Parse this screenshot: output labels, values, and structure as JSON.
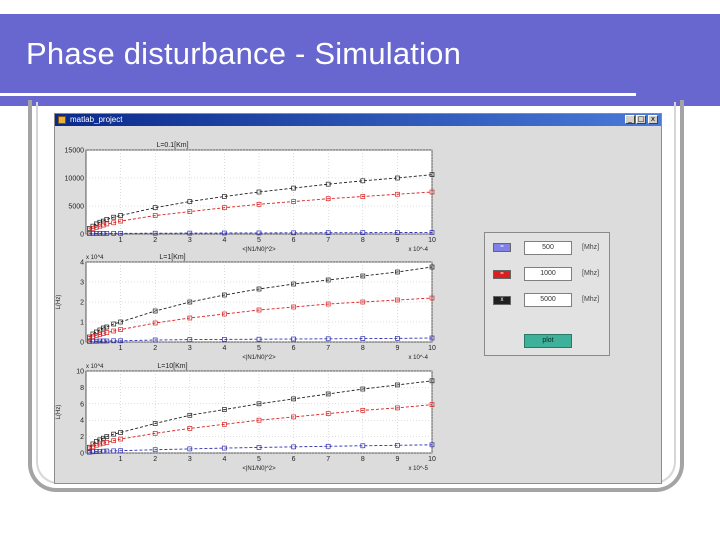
{
  "slide": {
    "title": "Phase disturbance - Simulation",
    "colors": {
      "header": "#6767cf",
      "frame": "#a4a4a4"
    }
  },
  "window": {
    "title": "matlab_project",
    "icon": "matlab-icon",
    "controls": [
      "_",
      "□",
      "x"
    ]
  },
  "panel": {
    "rows": [
      {
        "swatch_color": "#8080e6",
        "swatch_label": "=",
        "value": "500",
        "unit": "[Mhz]"
      },
      {
        "swatch_color": "#d82020",
        "swatch_label": "=",
        "value": "1000",
        "unit": "[Mhz]"
      },
      {
        "swatch_color": "#202020",
        "swatch_label": "x",
        "value": "5000",
        "unit": "[Mhz]"
      }
    ],
    "button_label": "plot"
  },
  "chart_data": [
    {
      "type": "line",
      "title": "L=0.1[Km]",
      "xlabel": "<|N1/N0|^2>",
      "ylabel": "",
      "x_exponent": "x 10^-4",
      "y_exponent": "",
      "xlim": [
        0,
        10
      ],
      "ylim": [
        0,
        15000
      ],
      "yticks": [
        "0",
        "5000",
        "10000",
        "15000"
      ],
      "xticks": [
        "1",
        "2",
        "3",
        "4",
        "5",
        "6",
        "7",
        "8",
        "9",
        "10"
      ],
      "x": [
        0.1,
        0.2,
        0.3,
        0.4,
        0.5,
        0.6,
        0.8,
        1,
        2,
        3,
        4,
        5,
        6,
        7,
        8,
        9,
        10
      ],
      "series": [
        {
          "color": "#202020",
          "values": [
            1000,
            1400,
            1800,
            2100,
            2300,
            2600,
            3000,
            3300,
            4700,
            5800,
            6700,
            7500,
            8200,
            8900,
            9500,
            10000,
            10600
          ]
        },
        {
          "color": "#d82020",
          "values": [
            700,
            1000,
            1200,
            1400,
            1600,
            1800,
            2000,
            2300,
            3300,
            4000,
            4700,
            5300,
            5800,
            6300,
            6700,
            7100,
            7500
          ]
        },
        {
          "color": "#3030b0",
          "values": [
            80,
            90,
            100,
            110,
            110,
            115,
            120,
            120,
            140,
            160,
            180,
            190,
            210,
            230,
            240,
            260,
            280
          ]
        }
      ]
    },
    {
      "type": "line",
      "title": "L=1[Km]",
      "xlabel": "<|N1/N0|^2>",
      "ylabel": "L(Hz)",
      "x_exponent": "x 10^-4",
      "y_exponent": "x 10^4",
      "xlim": [
        0,
        10
      ],
      "ylim": [
        0,
        4
      ],
      "yticks": [
        "0",
        "1",
        "2",
        "3",
        "4"
      ],
      "xticks": [
        "1",
        "2",
        "3",
        "4",
        "5",
        "6",
        "7",
        "8",
        "9",
        "10"
      ],
      "x": [
        0.1,
        0.2,
        0.3,
        0.4,
        0.5,
        0.6,
        0.8,
        1,
        2,
        3,
        4,
        5,
        6,
        7,
        8,
        9,
        10
      ],
      "series": [
        {
          "color": "#202020",
          "values": [
            0.25,
            0.4,
            0.5,
            0.6,
            0.7,
            0.75,
            0.9,
            1.0,
            1.55,
            2.0,
            2.35,
            2.65,
            2.9,
            3.1,
            3.3,
            3.5,
            3.75
          ]
        },
        {
          "color": "#d82020",
          "values": [
            0.18,
            0.27,
            0.33,
            0.38,
            0.43,
            0.47,
            0.55,
            0.62,
            0.95,
            1.2,
            1.4,
            1.6,
            1.75,
            1.9,
            2.0,
            2.1,
            2.2
          ]
        },
        {
          "color": "#3030b0",
          "values": [
            0.03,
            0.04,
            0.04,
            0.05,
            0.05,
            0.05,
            0.06,
            0.06,
            0.1,
            0.12,
            0.13,
            0.14,
            0.15,
            0.16,
            0.17,
            0.18,
            0.2
          ]
        }
      ]
    },
    {
      "type": "line",
      "title": "L=10[Km]",
      "xlabel": "<|N1/N0|^2>",
      "ylabel": "L(Hz)",
      "x_exponent": "x 10^-5",
      "y_exponent": "x 10^4",
      "xlim": [
        0,
        10
      ],
      "ylim": [
        0,
        10
      ],
      "yticks": [
        "0",
        "2",
        "4",
        "6",
        "8",
        "10"
      ],
      "xticks": [
        "1",
        "2",
        "3",
        "4",
        "5",
        "6",
        "7",
        "8",
        "9",
        "10"
      ],
      "x": [
        0.1,
        0.2,
        0.3,
        0.4,
        0.5,
        0.6,
        0.8,
        1,
        2,
        3,
        4,
        5,
        6,
        7,
        8,
        9,
        10
      ],
      "series": [
        {
          "color": "#202020",
          "values": [
            0.7,
            1.1,
            1.4,
            1.6,
            1.8,
            2.0,
            2.3,
            2.5,
            3.6,
            4.6,
            5.3,
            6.0,
            6.6,
            7.2,
            7.8,
            8.3,
            8.8
          ]
        },
        {
          "color": "#d82020",
          "values": [
            0.5,
            0.75,
            0.95,
            1.1,
            1.2,
            1.3,
            1.5,
            1.7,
            2.4,
            3.0,
            3.5,
            4.0,
            4.4,
            4.8,
            5.2,
            5.5,
            5.9
          ]
        },
        {
          "color": "#3030b0",
          "values": [
            0.1,
            0.15,
            0.18,
            0.2,
            0.22,
            0.24,
            0.26,
            0.28,
            0.4,
            0.5,
            0.6,
            0.68,
            0.75,
            0.82,
            0.88,
            0.94,
            1.0
          ]
        }
      ]
    }
  ]
}
